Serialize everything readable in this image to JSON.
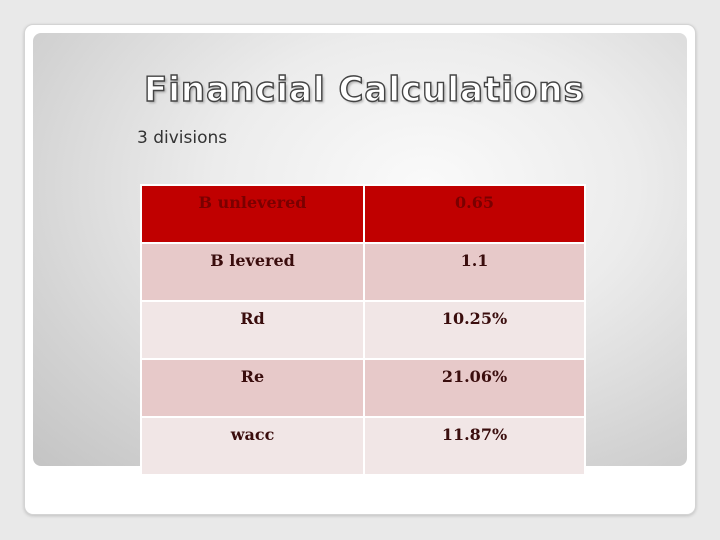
{
  "slide": {
    "title": "Financial Calculations",
    "subtitle": "3 divisions"
  },
  "table": {
    "rows": [
      {
        "label": "B unlevered",
        "value": "0.65"
      },
      {
        "label": "B levered",
        "value": "1.1"
      },
      {
        "label": "Rd",
        "value": "10.25%"
      },
      {
        "label": "Re",
        "value": "21.06%"
      },
      {
        "label": "wacc",
        "value": "11.87%"
      }
    ]
  },
  "colors": {
    "header_fill": "#c00000",
    "row_fill_dark": "#e7c9c9",
    "row_fill_light": "#f1e6e6"
  }
}
